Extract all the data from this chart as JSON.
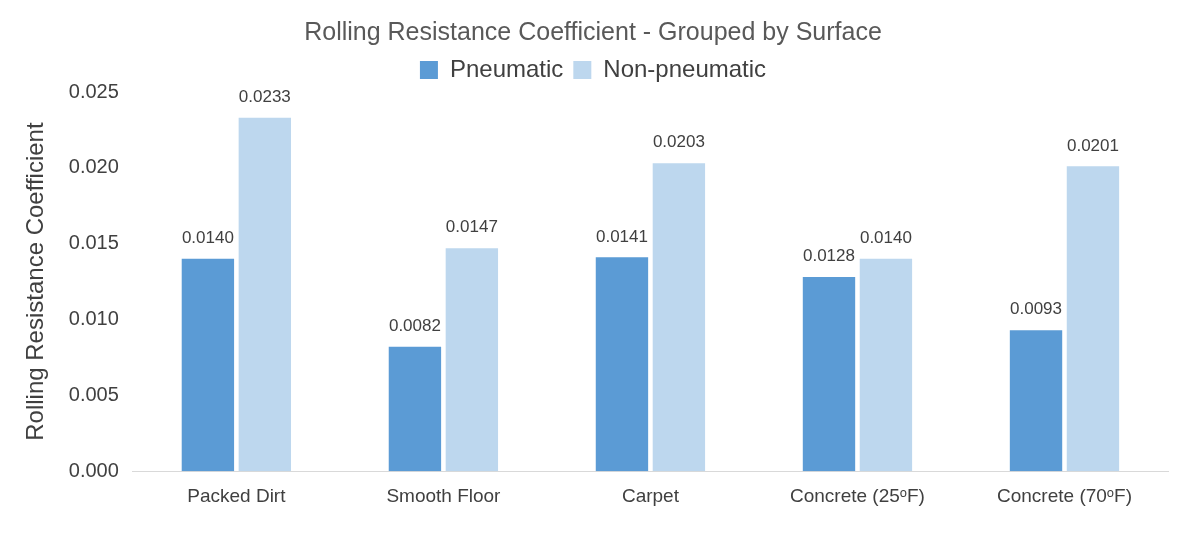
{
  "chart_data": {
    "type": "bar",
    "title": "Rolling Resistance Coefficient - Grouped by Surface",
    "ylabel": "Rolling Resistance Coefficient",
    "categories": [
      "Packed Dirt",
      "Smooth Floor",
      "Carpet",
      "Concrete (25ᵒF)",
      "Concrete (70ᵒF)"
    ],
    "series": [
      {
        "name": "Pneumatic",
        "color": "#5b9bd5",
        "values": [
          0.014,
          0.0082,
          0.0141,
          0.0128,
          0.0093
        ],
        "value_labels": [
          "0.0140",
          "0.0082",
          "0.0141",
          "0.0128",
          "0.0093"
        ]
      },
      {
        "name": "Non-pneumatic",
        "color": "#bdd7ee",
        "values": [
          0.0233,
          0.0147,
          0.0203,
          0.014,
          0.0201
        ],
        "value_labels": [
          "0.0233",
          "0.0147",
          "0.0203",
          "0.0140",
          "0.0201"
        ]
      }
    ],
    "ylim": [
      0,
      0.025
    ],
    "yticks": [
      {
        "value": 0,
        "label": "0.000"
      },
      {
        "value": 0.005,
        "label": "0.005"
      },
      {
        "value": 0.01,
        "label": "0.010"
      },
      {
        "value": 0.015,
        "label": "0.015"
      },
      {
        "value": 0.02,
        "label": "0.020"
      },
      {
        "value": 0.025,
        "label": "0.025"
      }
    ],
    "grid": false,
    "legend": "top"
  }
}
